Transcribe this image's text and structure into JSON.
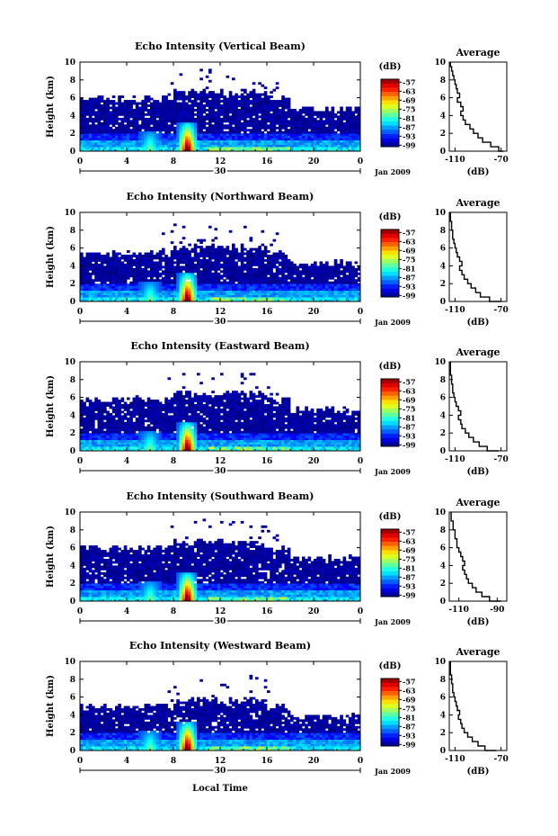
{
  "figure": {
    "x_axis_title": "Local Time",
    "date_label": "Jan 2009",
    "colorbar_unit": "(dB)",
    "y_axis_label": "Height (km)",
    "avg_title": "Average",
    "avg_xlabel": "(dB)"
  },
  "chart_data": [
    {
      "type": "heatmap",
      "title": "Echo Intensity (Vertical Beam)",
      "ylabel": "Height (km)",
      "x_ticks": [
        "0",
        "4",
        "8",
        "12",
        "16",
        "20",
        "0"
      ],
      "day_label": "30",
      "xlim": [
        0,
        24
      ],
      "ylim": [
        0,
        10
      ],
      "y_ticks": [
        "0",
        "2",
        "4",
        "6",
        "8",
        "10"
      ],
      "colorbar": {
        "unit": "(dB)",
        "ticks": [
          "-57",
          "-63",
          "-69",
          "-75",
          "-81",
          "-87",
          "-93",
          "-99"
        ],
        "range": [
          -100,
          -55
        ]
      },
      "cloud_top_km": 6.0,
      "bursts_hour": [
        6.0,
        9.2
      ],
      "average": {
        "title": "Average",
        "xlabel": "(dB)",
        "x_ticks": [
          "-110",
          "-70"
        ],
        "xlim": [
          -115,
          -65
        ],
        "ylim": [
          0,
          10
        ],
        "y_ticks": [
          "0",
          "2",
          "4",
          "6",
          "8",
          "10"
        ],
        "profile": [
          [
            0,
            -68
          ],
          [
            0.5,
            -72
          ],
          [
            1,
            -79
          ],
          [
            1.5,
            -86
          ],
          [
            2,
            -90
          ],
          [
            2.5,
            -94
          ],
          [
            3,
            -97
          ],
          [
            3.5,
            -101
          ],
          [
            4,
            -103
          ],
          [
            4.5,
            -105
          ],
          [
            5,
            -103
          ],
          [
            5.5,
            -105
          ],
          [
            6,
            -108
          ],
          [
            6.5,
            -106
          ],
          [
            7,
            -108
          ],
          [
            7.5,
            -109
          ],
          [
            8,
            -110
          ],
          [
            8.5,
            -111
          ],
          [
            9,
            -112
          ],
          [
            9.5,
            -113
          ],
          [
            10,
            -114
          ]
        ]
      }
    },
    {
      "type": "heatmap",
      "title": "Echo Intensity (Northward Beam)",
      "ylabel": "Height (km)",
      "x_ticks": [
        "0",
        "4",
        "8",
        "12",
        "16",
        "20",
        "0"
      ],
      "day_label": "30",
      "xlim": [
        0,
        24
      ],
      "ylim": [
        0,
        10
      ],
      "y_ticks": [
        "0",
        "2",
        "4",
        "6",
        "8",
        "10"
      ],
      "colorbar": {
        "unit": "(dB)",
        "ticks": [
          "-57",
          "-63",
          "-69",
          "-75",
          "-81",
          "-87",
          "-93",
          "-99"
        ],
        "range": [
          -100,
          -55
        ]
      },
      "cloud_top_km": 5.5,
      "bursts_hour": [
        6.0,
        9.2
      ],
      "average": {
        "title": "Average",
        "xlabel": "(dB)",
        "x_ticks": [
          "-110",
          "-70"
        ],
        "xlim": [
          -115,
          -65
        ],
        "ylim": [
          0,
          10
        ],
        "y_ticks": [
          "0",
          "2",
          "4",
          "6",
          "8",
          "10"
        ],
        "profile": [
          [
            0,
            -70
          ],
          [
            0.5,
            -80
          ],
          [
            1,
            -88
          ],
          [
            1.5,
            -92
          ],
          [
            2,
            -96
          ],
          [
            2.5,
            -99
          ],
          [
            3,
            -102
          ],
          [
            3.5,
            -104
          ],
          [
            4,
            -106
          ],
          [
            4.5,
            -104
          ],
          [
            5,
            -106
          ],
          [
            5.5,
            -108
          ],
          [
            6,
            -109
          ],
          [
            6.5,
            -110
          ],
          [
            7,
            -111
          ],
          [
            7.5,
            -112
          ],
          [
            8,
            -112
          ],
          [
            8.5,
            -113
          ],
          [
            9,
            -113
          ],
          [
            9.5,
            -114
          ],
          [
            10,
            -114
          ]
        ]
      }
    },
    {
      "type": "heatmap",
      "title": "Echo Intensity (Eastward Beam)",
      "ylabel": "Height (km)",
      "x_ticks": [
        "0",
        "4",
        "8",
        "12",
        "16",
        "20",
        "0"
      ],
      "day_label": "30",
      "xlim": [
        0,
        24
      ],
      "ylim": [
        0,
        10
      ],
      "y_ticks": [
        "0",
        "2",
        "4",
        "6",
        "8",
        "10"
      ],
      "colorbar": {
        "unit": "(dB)",
        "ticks": [
          "-57",
          "-63",
          "-69",
          "-75",
          "-81",
          "-87",
          "-93",
          "-99"
        ],
        "range": [
          -100,
          -55
        ]
      },
      "cloud_top_km": 5.8,
      "bursts_hour": [
        6.0,
        9.2
      ],
      "average": {
        "title": "Average",
        "xlabel": "(dB)",
        "x_ticks": [
          "-110",
          "-70"
        ],
        "xlim": [
          -115,
          -65
        ],
        "ylim": [
          0,
          10
        ],
        "y_ticks": [
          "0",
          "2",
          "4",
          "6",
          "8",
          "10"
        ],
        "profile": [
          [
            0,
            -72
          ],
          [
            0.5,
            -82
          ],
          [
            1,
            -89
          ],
          [
            1.5,
            -94
          ],
          [
            2,
            -98
          ],
          [
            2.5,
            -101
          ],
          [
            3,
            -104
          ],
          [
            3.5,
            -105
          ],
          [
            4,
            -107
          ],
          [
            4.5,
            -105
          ],
          [
            5,
            -107
          ],
          [
            5.5,
            -109
          ],
          [
            6,
            -110
          ],
          [
            6.5,
            -111
          ],
          [
            7,
            -112
          ],
          [
            7.5,
            -112
          ],
          [
            8,
            -113
          ],
          [
            8.5,
            -113
          ],
          [
            9,
            -114
          ],
          [
            9.5,
            -114
          ],
          [
            10,
            -114
          ]
        ]
      }
    },
    {
      "type": "heatmap",
      "title": "Echo Intensity (Southward Beam)",
      "ylabel": "Height (km)",
      "x_ticks": [
        "0",
        "4",
        "8",
        "12",
        "16",
        "20",
        "0"
      ],
      "day_label": "30",
      "xlim": [
        0,
        24
      ],
      "ylim": [
        0,
        10
      ],
      "y_ticks": [
        "0",
        "2",
        "4",
        "6",
        "8",
        "10"
      ],
      "colorbar": {
        "unit": "(dB)",
        "ticks": [
          "-57",
          "-63",
          "-69",
          "-75",
          "-81",
          "-87",
          "-93",
          "-99"
        ],
        "range": [
          -100,
          -55
        ]
      },
      "cloud_top_km": 6.0,
      "bursts_hour": [
        6.0,
        9.2
      ],
      "average": {
        "title": "Average",
        "xlabel": "(dB)",
        "x_ticks": [
          "-110",
          "-90"
        ],
        "xlim": [
          -115,
          -85
        ],
        "ylim": [
          0,
          10
        ],
        "y_ticks": [
          "0",
          "2",
          "4",
          "6",
          "8",
          "10"
        ],
        "profile": [
          [
            0,
            -88
          ],
          [
            0.5,
            -94
          ],
          [
            1,
            -98
          ],
          [
            1.5,
            -101
          ],
          [
            2,
            -103
          ],
          [
            2.5,
            -105
          ],
          [
            3,
            -106
          ],
          [
            3.5,
            -107
          ],
          [
            4,
            -108
          ],
          [
            4.5,
            -107
          ],
          [
            5,
            -108
          ],
          [
            5.5,
            -109
          ],
          [
            6,
            -110
          ],
          [
            6.5,
            -111
          ],
          [
            7,
            -111
          ],
          [
            7.5,
            -112
          ],
          [
            8,
            -112
          ],
          [
            8.5,
            -113
          ],
          [
            9,
            -113
          ],
          [
            9.5,
            -114
          ],
          [
            10,
            -114
          ]
        ]
      }
    },
    {
      "type": "heatmap",
      "title": "Echo Intensity (Westward Beam)",
      "ylabel": "Height (km)",
      "x_ticks": [
        "0",
        "4",
        "8",
        "12",
        "16",
        "20",
        "0"
      ],
      "day_label": "30",
      "xlim": [
        0,
        24
      ],
      "ylim": [
        0,
        10
      ],
      "y_ticks": [
        "0",
        "2",
        "4",
        "6",
        "8",
        "10"
      ],
      "colorbar": {
        "unit": "(dB)",
        "ticks": [
          "-57",
          "-63",
          "-69",
          "-75",
          "-81",
          "-87",
          "-93",
          "-99"
        ],
        "range": [
          -100,
          -55
        ]
      },
      "cloud_top_km": 5.0,
      "bursts_hour": [
        6.0,
        9.2
      ],
      "average": {
        "title": "Average",
        "xlabel": "(dB)",
        "x_ticks": [
          "-110",
          "-70"
        ],
        "xlim": [
          -115,
          -65
        ],
        "ylim": [
          0,
          10
        ],
        "y_ticks": [
          "0",
          "2",
          "4",
          "6",
          "8",
          "10"
        ],
        "profile": [
          [
            0,
            -74
          ],
          [
            0.5,
            -84
          ],
          [
            1,
            -90
          ],
          [
            1.5,
            -95
          ],
          [
            2,
            -99
          ],
          [
            2.5,
            -102
          ],
          [
            3,
            -104
          ],
          [
            3.5,
            -105
          ],
          [
            4,
            -107
          ],
          [
            4.5,
            -106
          ],
          [
            5,
            -108
          ],
          [
            5.5,
            -109
          ],
          [
            6,
            -110
          ],
          [
            6.5,
            -111
          ],
          [
            7,
            -112
          ],
          [
            7.5,
            -112
          ],
          [
            8,
            -113
          ],
          [
            8.5,
            -113
          ],
          [
            9,
            -114
          ],
          [
            9.5,
            -114
          ],
          [
            10,
            -114
          ]
        ]
      }
    }
  ]
}
